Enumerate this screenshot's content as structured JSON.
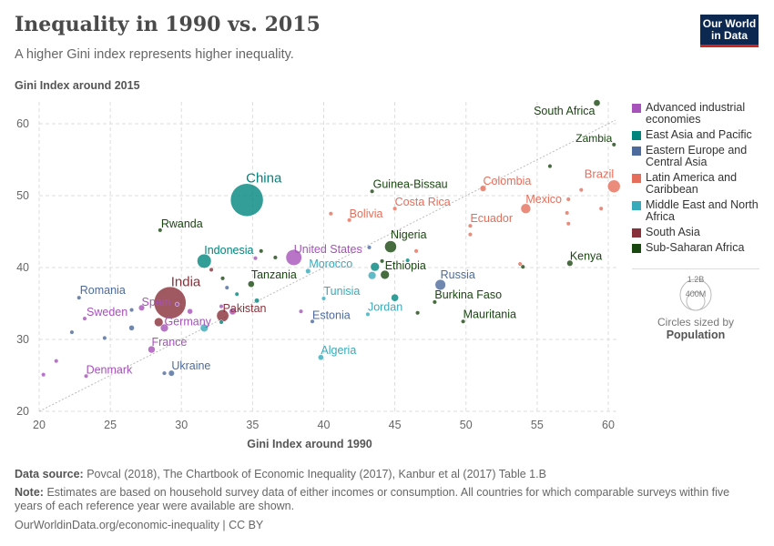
{
  "header": {
    "title": "Inequality in 1990 vs. 2015",
    "subtitle": "A higher Gini index represents higher inequality.",
    "logo": "Our World in Data"
  },
  "chart_data": {
    "type": "scatter",
    "xlabel": "Gini Index around 1990",
    "ylabel": "Gini Index around 2015",
    "xlim": [
      20,
      61
    ],
    "ylim": [
      20,
      64
    ],
    "xticks": [
      20,
      25,
      30,
      35,
      40,
      45,
      50,
      55,
      60
    ],
    "yticks": [
      20,
      30,
      40,
      50,
      60
    ],
    "grid": true,
    "reference_line": "y = x",
    "legend_placement": "right",
    "size_legend": {
      "title": "Circles sized by",
      "variable": "Population",
      "labels": [
        "1.2B",
        "400M"
      ]
    },
    "regions": [
      {
        "key": "adv",
        "name": "Advanced industrial economies",
        "color": "#a652ba"
      },
      {
        "key": "eap",
        "name": "East Asia and Pacific",
        "color": "#00847e"
      },
      {
        "key": "eeca",
        "name": "Eastern Europe and Central Asia",
        "color": "#4c6a9c"
      },
      {
        "key": "lac",
        "name": "Latin America and Caribbean",
        "color": "#e56e5a"
      },
      {
        "key": "mena",
        "name": "Middle East and North Africa",
        "color": "#38aaba"
      },
      {
        "key": "sa",
        "name": "South Asia",
        "color": "#883039"
      },
      {
        "key": "ssa",
        "name": "Sub-Saharan Africa",
        "color": "#18470f"
      }
    ],
    "points": [
      {
        "label": "China",
        "region": "eap",
        "x": 34.6,
        "y": 49.4,
        "pop": 1371
      },
      {
        "label": "India",
        "region": "sa",
        "x": 29.2,
        "y": 35.1,
        "pop": 1310
      },
      {
        "label": "Indonesia",
        "region": "eap",
        "x": 31.6,
        "y": 40.9,
        "pop": 258
      },
      {
        "label": "United States",
        "region": "adv",
        "x": 37.9,
        "y": 41.4,
        "pop": 321
      },
      {
        "label": "Rwanda",
        "region": "ssa",
        "x": 28.5,
        "y": 45.2,
        "pop": 11
      },
      {
        "label": "Tanzania",
        "region": "ssa",
        "x": 34.9,
        "y": 37.7,
        "pop": 53
      },
      {
        "label": "Romania",
        "region": "eeca",
        "x": 22.8,
        "y": 35.8,
        "pop": 20
      },
      {
        "label": "Spain",
        "region": "adv",
        "x": 27.2,
        "y": 34.4,
        "pop": 46
      },
      {
        "label": "Sweden",
        "region": "adv",
        "x": 23.2,
        "y": 32.9,
        "pop": 10
      },
      {
        "label": "Germany",
        "region": "adv",
        "x": 28.8,
        "y": 31.6,
        "pop": 81
      },
      {
        "label": "Pakistan",
        "region": "sa",
        "x": 32.9,
        "y": 33.3,
        "pop": 189
      },
      {
        "label": "France",
        "region": "adv",
        "x": 27.9,
        "y": 28.6,
        "pop": 66
      },
      {
        "label": "Denmark",
        "region": "adv",
        "x": 23.3,
        "y": 24.9,
        "pop": 6
      },
      {
        "label": "Ukraine",
        "region": "eeca",
        "x": 29.3,
        "y": 25.3,
        "pop": 45
      },
      {
        "label": "Estonia",
        "region": "eeca",
        "x": 39.2,
        "y": 32.5,
        "pop": 1.3
      },
      {
        "label": "Algeria",
        "region": "mena",
        "x": 39.8,
        "y": 27.5,
        "pop": 40
      },
      {
        "label": "Tunisia",
        "region": "mena",
        "x": 40.0,
        "y": 35.7,
        "pop": 11
      },
      {
        "label": "Jordan",
        "region": "mena",
        "x": 43.1,
        "y": 33.5,
        "pop": 9
      },
      {
        "label": "Morocco",
        "region": "mena",
        "x": 38.9,
        "y": 39.5,
        "pop": 34
      },
      {
        "label": "Nigeria",
        "region": "ssa",
        "x": 44.7,
        "y": 42.9,
        "pop": 181
      },
      {
        "label": "Ethiopia",
        "region": "ssa",
        "x": 44.3,
        "y": 39.0,
        "pop": 100
      },
      {
        "label": "Russia",
        "region": "eeca",
        "x": 48.2,
        "y": 37.6,
        "pop": 144
      },
      {
        "label": "Burkina Faso",
        "region": "ssa",
        "x": 47.8,
        "y": 35.2,
        "pop": 18
      },
      {
        "label": "Mauritania",
        "region": "ssa",
        "x": 49.8,
        "y": 32.5,
        "pop": 4
      },
      {
        "label": "Kenya",
        "region": "ssa",
        "x": 57.3,
        "y": 40.6,
        "pop": 47
      },
      {
        "label": "Guinea-Bissau",
        "region": "ssa",
        "x": 43.4,
        "y": 50.6,
        "pop": 2
      },
      {
        "label": "Costa Rica",
        "region": "lac",
        "x": 45.0,
        "y": 48.2,
        "pop": 5
      },
      {
        "label": "Bolivia",
        "region": "lac",
        "x": 41.8,
        "y": 46.6,
        "pop": 11
      },
      {
        "label": "Colombia",
        "region": "lac",
        "x": 51.2,
        "y": 51.0,
        "pop": 48
      },
      {
        "label": "Ecuador",
        "region": "lac",
        "x": 50.3,
        "y": 45.8,
        "pop": 16
      },
      {
        "label": "Mexico",
        "region": "lac",
        "x": 54.2,
        "y": 48.2,
        "pop": 125
      },
      {
        "label": "Brazil",
        "region": "lac",
        "x": 60.4,
        "y": 51.3,
        "pop": 206
      },
      {
        "label": "South Africa",
        "region": "ssa",
        "x": 59.2,
        "y": 62.9,
        "pop": 55
      },
      {
        "label": "Zambia",
        "region": "ssa",
        "x": 60.4,
        "y": 57.1,
        "pop": 16
      },
      {
        "region": "ssa",
        "x": 35.6,
        "y": 42.3,
        "pop": 12
      },
      {
        "region": "ssa",
        "x": 36.6,
        "y": 41.4,
        "pop": 12
      },
      {
        "region": "adv",
        "x": 35.2,
        "y": 41.3,
        "pop": 5
      },
      {
        "region": "sa",
        "x": 32.1,
        "y": 39.7,
        "pop": 17
      },
      {
        "region": "ssa",
        "x": 32.9,
        "y": 38.5,
        "pop": 8
      },
      {
        "region": "eeca",
        "x": 33.2,
        "y": 37.2,
        "pop": 9
      },
      {
        "region": "eap",
        "x": 33.9,
        "y": 36.3,
        "pop": 7
      },
      {
        "region": "eap",
        "x": 35.3,
        "y": 35.4,
        "pop": 31
      },
      {
        "region": "eeca",
        "x": 26.5,
        "y": 34.1,
        "pop": 9
      },
      {
        "region": "adv",
        "x": 29.7,
        "y": 34.9,
        "pop": 10
      },
      {
        "region": "adv",
        "x": 30.6,
        "y": 33.9,
        "pop": 38
      },
      {
        "region": "adv",
        "x": 32.8,
        "y": 34.6,
        "pop": 11
      },
      {
        "region": "adv",
        "x": 33.6,
        "y": 33.9,
        "pop": 60
      },
      {
        "region": "sa",
        "x": 28.4,
        "y": 32.4,
        "pop": 100
      },
      {
        "region": "eeca",
        "x": 26.5,
        "y": 31.6,
        "pop": 38
      },
      {
        "region": "mena",
        "x": 31.6,
        "y": 31.6,
        "pop": 80
      },
      {
        "region": "eap",
        "x": 32.8,
        "y": 32.4,
        "pop": 7
      },
      {
        "region": "eeca",
        "x": 22.3,
        "y": 31.0,
        "pop": 5
      },
      {
        "region": "eeca",
        "x": 24.6,
        "y": 30.2,
        "pop": 5
      },
      {
        "region": "adv",
        "x": 21.2,
        "y": 27.0,
        "pop": 5
      },
      {
        "region": "adv",
        "x": 20.3,
        "y": 25.1,
        "pop": 5
      },
      {
        "region": "eeca",
        "x": 28.8,
        "y": 25.3,
        "pop": 5
      },
      {
        "region": "adv",
        "x": 38.4,
        "y": 33.9,
        "pop": 5
      },
      {
        "region": "ssa",
        "x": 55.9,
        "y": 54.1,
        "pop": 5
      },
      {
        "region": "lac",
        "x": 58.1,
        "y": 50.8,
        "pop": 6
      },
      {
        "region": "lac",
        "x": 57.2,
        "y": 49.5,
        "pop": 6
      },
      {
        "region": "lac",
        "x": 57.1,
        "y": 47.6,
        "pop": 6
      },
      {
        "region": "lac",
        "x": 57.2,
        "y": 46.1,
        "pop": 6
      },
      {
        "region": "lac",
        "x": 59.5,
        "y": 48.2,
        "pop": 6
      },
      {
        "region": "lac",
        "x": 40.5,
        "y": 47.5,
        "pop": 6
      },
      {
        "region": "lac",
        "x": 50.3,
        "y": 44.6,
        "pop": 6
      },
      {
        "region": "lac",
        "x": 46.5,
        "y": 42.3,
        "pop": 10
      },
      {
        "region": "ssa",
        "x": 44.1,
        "y": 40.9,
        "pop": 12
      },
      {
        "region": "eap",
        "x": 45.9,
        "y": 41.0,
        "pop": 4
      },
      {
        "region": "eap",
        "x": 43.6,
        "y": 40.1,
        "pop": 100
      },
      {
        "region": "mena",
        "x": 43.4,
        "y": 38.9,
        "pop": 80
      },
      {
        "region": "eap",
        "x": 45.0,
        "y": 35.8,
        "pop": 70
      },
      {
        "region": "ssa",
        "x": 46.6,
        "y": 33.7,
        "pop": 5
      },
      {
        "region": "lac",
        "x": 53.8,
        "y": 40.5,
        "pop": 5
      },
      {
        "region": "ssa",
        "x": 54.0,
        "y": 40.1,
        "pop": 5
      },
      {
        "region": "eeca",
        "x": 43.2,
        "y": 42.8,
        "pop": 20
      }
    ]
  },
  "footer": {
    "source_label": "Data source:",
    "source": "Povcal (2018), The Chartbook of Economic Inequality (2017), Kanbur et al (2017) Table 1.B",
    "note_label": "Note:",
    "note": "Estimates are based on household survey data of either incomes or consumption. All countries for which comparable surveys within five years of each reference year were available are shown.",
    "credit": "OurWorldinData.org/economic-inequality | CC BY"
  }
}
